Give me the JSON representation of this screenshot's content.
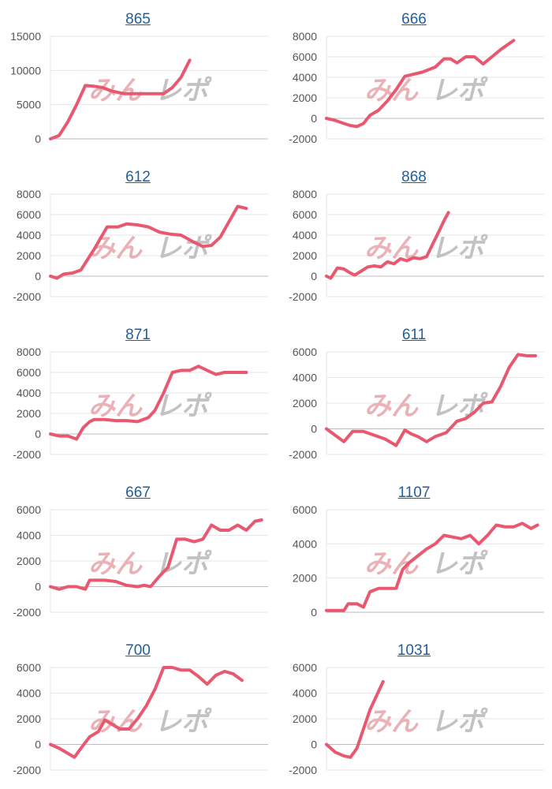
{
  "watermark": {
    "part1": "みん",
    "part2": "レポ",
    "color1": "#e9aeb4",
    "color2": "#bfbfbf"
  },
  "line_color": "#e8586f",
  "chart_data": [
    {
      "type": "line",
      "title": "865",
      "xlabel": "",
      "ylabel": "",
      "ylim": [
        0,
        15000
      ],
      "yticks": [
        0,
        5000,
        10000,
        15000
      ],
      "x": [
        0,
        0.04,
        0.08,
        0.12,
        0.16,
        0.2,
        0.24,
        0.28,
        0.34,
        0.4,
        0.46,
        0.52,
        0.56,
        0.6,
        0.64
      ],
      "values": [
        0,
        500,
        2500,
        5000,
        7800,
        7700,
        7500,
        7000,
        6600,
        6600,
        6600,
        6600,
        7500,
        9000,
        11500
      ]
    },
    {
      "type": "line",
      "title": "666",
      "xlabel": "",
      "ylabel": "",
      "ylim": [
        -2000,
        8000
      ],
      "yticks": [
        -2000,
        0,
        2000,
        4000,
        6000,
        8000
      ],
      "x": [
        0,
        0.04,
        0.08,
        0.11,
        0.14,
        0.17,
        0.2,
        0.24,
        0.28,
        0.32,
        0.36,
        0.4,
        0.44,
        0.5,
        0.54,
        0.57,
        0.6,
        0.64,
        0.68,
        0.72,
        0.76,
        0.8,
        0.86
      ],
      "values": [
        0,
        -200,
        -500,
        -700,
        -800,
        -500,
        300,
        800,
        1700,
        2800,
        4100,
        4300,
        4500,
        5000,
        5800,
        5800,
        5400,
        6000,
        6000,
        5300,
        6000,
        6700,
        7600
      ]
    },
    {
      "type": "line",
      "title": "612",
      "xlabel": "",
      "ylabel": "",
      "ylim": [
        -2000,
        8000
      ],
      "yticks": [
        -2000,
        0,
        2000,
        4000,
        6000,
        8000
      ],
      "x": [
        0,
        0.03,
        0.06,
        0.1,
        0.14,
        0.2,
        0.26,
        0.31,
        0.35,
        0.4,
        0.45,
        0.5,
        0.55,
        0.6,
        0.66,
        0.7,
        0.74,
        0.78,
        0.82,
        0.86,
        0.9
      ],
      "values": [
        0,
        -200,
        200,
        300,
        600,
        2600,
        4800,
        4800,
        5100,
        5000,
        4800,
        4300,
        4100,
        4000,
        3300,
        2900,
        3000,
        3800,
        5300,
        6800,
        6600
      ]
    },
    {
      "type": "line",
      "title": "868",
      "xlabel": "",
      "ylabel": "",
      "ylim": [
        -2000,
        8000
      ],
      "yticks": [
        -2000,
        0,
        2000,
        4000,
        6000,
        8000
      ],
      "x": [
        0,
        0.02,
        0.05,
        0.08,
        0.11,
        0.13,
        0.16,
        0.19,
        0.22,
        0.25,
        0.28,
        0.31,
        0.34,
        0.37,
        0.4,
        0.43,
        0.46,
        0.49,
        0.52,
        0.54,
        0.56
      ],
      "values": [
        0,
        -200,
        800,
        700,
        300,
        100,
        500,
        900,
        1000,
        900,
        1400,
        1200,
        1700,
        1500,
        1800,
        1700,
        1900,
        3200,
        4500,
        5400,
        6200
      ]
    },
    {
      "type": "line",
      "title": "871",
      "xlabel": "",
      "ylabel": "",
      "ylim": [
        -2000,
        8000
      ],
      "yticks": [
        -2000,
        0,
        2000,
        4000,
        6000,
        8000
      ],
      "x": [
        0,
        0.04,
        0.08,
        0.12,
        0.15,
        0.18,
        0.2,
        0.25,
        0.3,
        0.35,
        0.4,
        0.45,
        0.48,
        0.52,
        0.56,
        0.6,
        0.64,
        0.68,
        0.72,
        0.76,
        0.8,
        0.85,
        0.9
      ],
      "values": [
        0,
        -200,
        -200,
        -500,
        600,
        1200,
        1400,
        1400,
        1300,
        1300,
        1200,
        1600,
        2300,
        4000,
        6000,
        6200,
        6200,
        6600,
        6200,
        5800,
        6000,
        6000,
        6000
      ]
    },
    {
      "type": "line",
      "title": "611",
      "xlabel": "",
      "ylabel": "",
      "ylim": [
        -2000,
        6000
      ],
      "yticks": [
        -2000,
        0,
        2000,
        4000,
        6000
      ],
      "x": [
        0,
        0.04,
        0.08,
        0.12,
        0.17,
        0.22,
        0.27,
        0.32,
        0.36,
        0.39,
        0.42,
        0.46,
        0.5,
        0.55,
        0.6,
        0.64,
        0.68,
        0.72,
        0.76,
        0.8,
        0.84,
        0.88,
        0.92,
        0.96
      ],
      "values": [
        0,
        -500,
        -1000,
        -200,
        -200,
        -500,
        -800,
        -1300,
        -100,
        -400,
        -600,
        -1000,
        -600,
        -300,
        600,
        800,
        1300,
        2000,
        2100,
        3300,
        4800,
        5800,
        5700,
        5700
      ]
    },
    {
      "type": "line",
      "title": "667",
      "xlabel": "",
      "ylabel": "",
      "ylim": [
        -2000,
        6000
      ],
      "yticks": [
        -2000,
        0,
        2000,
        4000,
        6000
      ],
      "x": [
        0,
        0.04,
        0.08,
        0.12,
        0.16,
        0.18,
        0.2,
        0.25,
        0.3,
        0.35,
        0.4,
        0.43,
        0.46,
        0.5,
        0.54,
        0.58,
        0.62,
        0.66,
        0.7,
        0.74,
        0.78,
        0.82,
        0.86,
        0.9,
        0.94,
        0.97
      ],
      "values": [
        0,
        -200,
        0,
        0,
        -200,
        500,
        500,
        500,
        400,
        100,
        0,
        100,
        0,
        800,
        1500,
        3700,
        3700,
        3500,
        3700,
        4800,
        4400,
        4400,
        4800,
        4400,
        5100,
        5200
      ]
    },
    {
      "type": "line",
      "title": "1107",
      "xlabel": "",
      "ylabel": "",
      "ylim": [
        0,
        6000
      ],
      "yticks": [
        0,
        2000,
        4000,
        6000
      ],
      "x": [
        0,
        0.04,
        0.08,
        0.1,
        0.14,
        0.17,
        0.2,
        0.24,
        0.28,
        0.32,
        0.35,
        0.38,
        0.42,
        0.46,
        0.5,
        0.54,
        0.58,
        0.62,
        0.66,
        0.7,
        0.74,
        0.78,
        0.82,
        0.86,
        0.9,
        0.94,
        0.97
      ],
      "values": [
        100,
        100,
        100,
        500,
        500,
        300,
        1200,
        1400,
        1400,
        1400,
        2500,
        2900,
        3300,
        3700,
        4000,
        4500,
        4400,
        4300,
        4500,
        4000,
        4500,
        5100,
        5000,
        5000,
        5200,
        4900,
        5100
      ]
    },
    {
      "type": "line",
      "title": "700",
      "xlabel": "",
      "ylabel": "",
      "ylim": [
        -2000,
        6000
      ],
      "yticks": [
        -2000,
        0,
        2000,
        4000,
        6000
      ],
      "x": [
        0,
        0.04,
        0.08,
        0.11,
        0.14,
        0.18,
        0.22,
        0.25,
        0.28,
        0.32,
        0.36,
        0.4,
        0.44,
        0.48,
        0.52,
        0.56,
        0.6,
        0.64,
        0.68,
        0.72,
        0.76,
        0.8,
        0.84,
        0.88
      ],
      "values": [
        0,
        -300,
        -700,
        -1000,
        -300,
        600,
        1000,
        1900,
        1600,
        1200,
        1200,
        2000,
        3000,
        4300,
        6000,
        6000,
        5800,
        5800,
        5300,
        4700,
        5400,
        5700,
        5500,
        5000
      ]
    },
    {
      "type": "line",
      "title": "1031",
      "xlabel": "",
      "ylabel": "",
      "ylim": [
        -2000,
        6000
      ],
      "yticks": [
        -2000,
        0,
        2000,
        4000,
        6000
      ],
      "x": [
        0,
        0.04,
        0.08,
        0.11,
        0.14,
        0.17,
        0.2,
        0.23,
        0.26
      ],
      "values": [
        0,
        -600,
        -900,
        -1000,
        -300,
        1200,
        2700,
        3800,
        4900
      ]
    }
  ]
}
